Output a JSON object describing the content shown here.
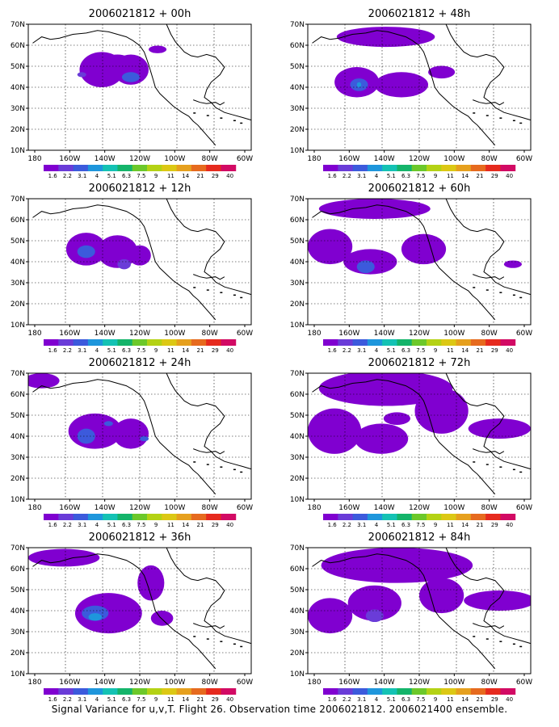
{
  "colors": {
    "fill_scale": [
      "#8000d0",
      "#6a3cd8",
      "#3c5adc",
      "#1e96dc",
      "#14c2b4",
      "#14b46a",
      "#6cc82a",
      "#b4d214",
      "#dcc814",
      "#e6a01e",
      "#e66a1e",
      "#e62a1e",
      "#d20a64"
    ],
    "coast": "#000000",
    "grid": "#000000"
  },
  "lat_labels": [
    "70N",
    "60N",
    "50N",
    "40N",
    "30N",
    "20N",
    "10N"
  ],
  "lon_labels": [
    "180",
    "160W",
    "140W",
    "120W",
    "100W",
    "80W",
    "60W"
  ],
  "colorbar_labels": [
    "1.6",
    "2.2",
    "3.1",
    "4",
    "5.1",
    "6.3",
    "7.5",
    "9",
    "11",
    "14",
    "21",
    "29",
    "40"
  ],
  "panels": [
    {
      "id": "p00",
      "title": "2006021812 + 00h"
    },
    {
      "id": "p48",
      "title": "2006021812 + 48h"
    },
    {
      "id": "p12",
      "title": "2006021812 + 12h"
    },
    {
      "id": "p60",
      "title": "2006021812 + 60h"
    },
    {
      "id": "p24",
      "title": "2006021812 + 24h"
    },
    {
      "id": "p72",
      "title": "2006021812 + 72h"
    },
    {
      "id": "p36",
      "title": "2006021812 + 36h"
    },
    {
      "id": "p84",
      "title": "2006021812 + 84h"
    }
  ],
  "caption": "Signal Variance for u,v,T. Flight 26. Observation time 2006021812. 2006021400 ensemble."
}
